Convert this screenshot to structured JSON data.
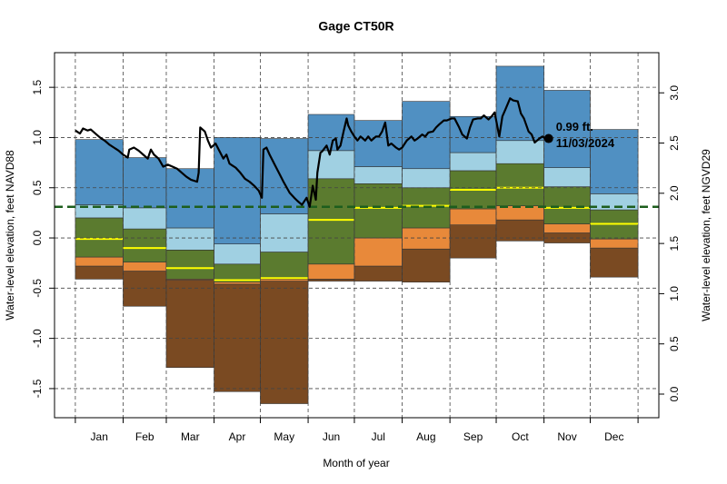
{
  "chart_data": {
    "type": "percentile-bands",
    "title": "Gage CT50R",
    "x_label": "Month of year",
    "y_label": "Water-level elevation, feet NAVD88",
    "y2_label": "Water-level elevation, feet NGVD29",
    "categories": [
      "Jan",
      "Feb",
      "Mar",
      "Apr",
      "May",
      "Jun",
      "Jul",
      "Aug",
      "Sep",
      "Oct",
      "Nov",
      "Dec"
    ],
    "xlim": [
      -13.5,
      378.5
    ],
    "xticks": [
      0,
      31,
      59,
      90,
      120,
      151,
      181,
      212,
      243,
      273,
      304,
      334,
      365
    ],
    "ylim": [
      -1.79,
      1.845
    ],
    "yticks": [
      {
        "value": -1.5,
        "label": "-1.5"
      },
      {
        "value": -1,
        "label": "-1.0"
      },
      {
        "value": -0.5,
        "label": "-0.5"
      },
      {
        "value": 0,
        "label": "0.0"
      },
      {
        "value": 0.5,
        "label": "0.5"
      },
      {
        "value": 1,
        "label": "1.0"
      },
      {
        "value": 1.5,
        "label": "1.5"
      }
    ],
    "y2lim": [
      -0.235,
      3.4
    ],
    "y2ticks": [
      {
        "value": 0,
        "label": "0.0"
      },
      {
        "value": 0.5,
        "label": "0.5"
      },
      {
        "value": 1,
        "label": "1.0"
      },
      {
        "value": 1.5,
        "label": "1.5"
      },
      {
        "value": 2,
        "label": "2.0"
      },
      {
        "value": 2.5,
        "label": "2.5"
      },
      {
        "value": 3,
        "label": "3.0"
      }
    ],
    "grid": true,
    "series": [
      {
        "values": [
          -0.41,
          -0.68,
          -1.29,
          -1.53,
          -1.65,
          -0.43,
          -0.43,
          -0.44,
          -0.2,
          -0.03,
          -0.05,
          -0.39
        ]
      },
      {
        "color": "#7a4a22",
        "values": [
          -0.28,
          -0.33,
          -0.42,
          -0.46,
          -0.43,
          -0.41,
          -0.28,
          -0.11,
          0.13,
          0.18,
          0.05,
          -0.1
        ]
      },
      {
        "color": "#e8893a",
        "values": [
          -0.19,
          -0.24,
          -0.41,
          -0.44,
          -0.41,
          -0.26,
          0.0,
          0.1,
          0.29,
          0.32,
          0.14,
          -0.01
        ]
      },
      {
        "color": "#5b7b2f",
        "values": [
          0.2,
          0.09,
          -0.12,
          -0.26,
          -0.14,
          0.59,
          0.54,
          0.5,
          0.67,
          0.74,
          0.51,
          0.28
        ]
      },
      {
        "color": "#a0d0e2",
        "values": [
          0.33,
          0.3,
          0.1,
          -0.06,
          0.24,
          0.87,
          0.71,
          0.69,
          0.85,
          0.97,
          0.7,
          0.44
        ]
      },
      {
        "color": "#5090c2",
        "values": [
          0.98,
          0.8,
          0.69,
          1.0,
          0.99,
          1.23,
          1.17,
          1.36,
          1.21,
          1.71,
          1.47,
          1.08
        ]
      }
    ],
    "median": {
      "color": "#ffff00",
      "values": [
        -0.01,
        -0.1,
        -0.3,
        -0.42,
        -0.4,
        0.18,
        0.3,
        0.32,
        0.48,
        0.5,
        0.3,
        0.14
      ]
    },
    "hline": {
      "value": 0.31,
      "color": "#1d5e1d"
    },
    "line": {
      "color": "#000000",
      "x": [
        0,
        3,
        5,
        8,
        10,
        13,
        16,
        19,
        22,
        25,
        28,
        31,
        34,
        35,
        38,
        41,
        44,
        47,
        49,
        51,
        54,
        57,
        60,
        63,
        66,
        69,
        72,
        75,
        79,
        80,
        81,
        84,
        86,
        88,
        91,
        93,
        96,
        98,
        100,
        102,
        104,
        107,
        110,
        113,
        116,
        119,
        121,
        122,
        124,
        126,
        129,
        132,
        135,
        139,
        142,
        144,
        147,
        150,
        152,
        154,
        156,
        157,
        159,
        160,
        163,
        165,
        167,
        169,
        170,
        172,
        174,
        176,
        177,
        179,
        181,
        183,
        185,
        188,
        190,
        192,
        195,
        197,
        199,
        201,
        203,
        205,
        208,
        210,
        212,
        215,
        218,
        220,
        222,
        225,
        227,
        229,
        232,
        234,
        236,
        239,
        241,
        244,
        246,
        249,
        251,
        254,
        256,
        258,
        261,
        263,
        265,
        268,
        270,
        272,
        275,
        277,
        279,
        282,
        284,
        287,
        289,
        291,
        294,
        296,
        298,
        301,
        303,
        305,
        307
      ],
      "values": [
        1.07,
        1.04,
        1.09,
        1.07,
        1.08,
        1.04,
        1.0,
        0.97,
        0.93,
        0.9,
        0.87,
        0.83,
        0.8,
        0.88,
        0.9,
        0.87,
        0.83,
        0.79,
        0.88,
        0.83,
        0.79,
        0.71,
        0.73,
        0.71,
        0.69,
        0.65,
        0.61,
        0.58,
        0.56,
        0.65,
        1.1,
        1.06,
        0.97,
        0.9,
        0.94,
        0.88,
        0.79,
        0.83,
        0.74,
        0.72,
        0.7,
        0.65,
        0.59,
        0.56,
        0.52,
        0.47,
        0.4,
        0.88,
        0.9,
        0.83,
        0.74,
        0.65,
        0.56,
        0.45,
        0.4,
        0.37,
        0.33,
        0.4,
        0.31,
        0.52,
        0.38,
        0.65,
        0.85,
        0.86,
        0.92,
        0.83,
        0.97,
        0.99,
        0.88,
        0.92,
        1.06,
        1.19,
        1.12,
        1.06,
        1.01,
        0.97,
        1.01,
        0.97,
        1.01,
        0.97,
        1.01,
        1.01,
        1.06,
        1.15,
        0.92,
        0.94,
        0.9,
        0.88,
        0.9,
        0.97,
        1.01,
        0.97,
        0.99,
        1.03,
        1.01,
        1.05,
        1.06,
        1.1,
        1.13,
        1.17,
        1.17,
        1.19,
        1.19,
        1.1,
        1.03,
        0.99,
        1.1,
        1.18,
        1.19,
        1.19,
        1.22,
        1.18,
        1.21,
        1.25,
        1.01,
        1.21,
        1.28,
        1.39,
        1.37,
        1.36,
        1.24,
        1.19,
        1.06,
        1.03,
        0.95,
        0.99,
        1.01,
        0.99,
        0.99
      ]
    },
    "annotation": [
      "0.99 ft.",
      "11/03/2024"
    ]
  }
}
